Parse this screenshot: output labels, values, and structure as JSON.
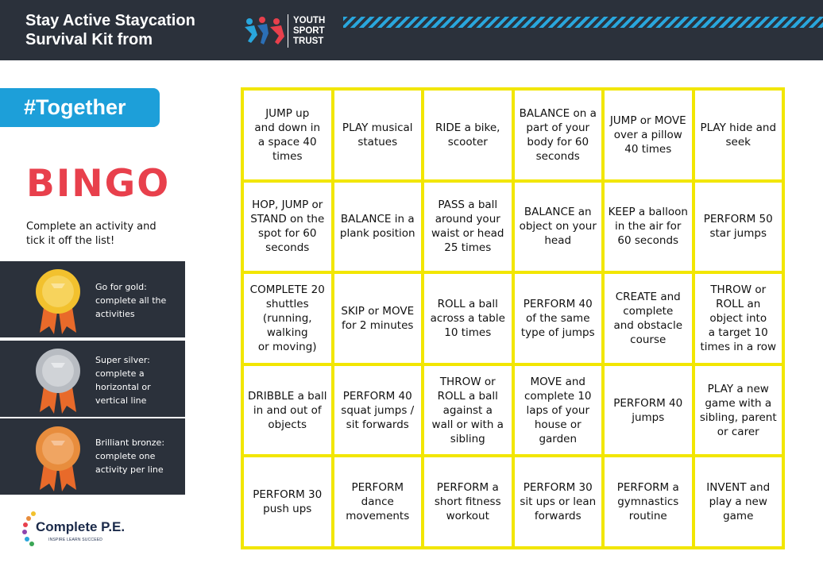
{
  "header": {
    "title": "Stay Active Staycation Survival Kit from",
    "logo_text": "YOUTH SPORT TRUST"
  },
  "tag": "#Together",
  "bingo_title": "BINGO",
  "instruction": "Complete an activity and tick it off the list!",
  "medals": [
    {
      "name": "gold",
      "text": "Go for gold: complete all the activities",
      "color": "#f2c12e"
    },
    {
      "name": "silver",
      "text": "Super silver: complete a horizontal or vertical line",
      "color": "#b8bcc2"
    },
    {
      "name": "bronze",
      "text": "Brilliant bronze: complete one activity per line",
      "color": "#e88d3d"
    }
  ],
  "footer_logo": {
    "name": "Complete P.E.",
    "tagline": "INSPIRE LEARN SUCCEED"
  },
  "grid": [
    [
      "JUMP up\nand down in\na space 40\ntimes",
      "PLAY musical\nstatues",
      "RIDE a bike,\nscooter",
      "BALANCE on a\npart of your\nbody for 60\nseconds",
      "JUMP or MOVE\nover a pillow\n40 times",
      "PLAY hide and\nseek"
    ],
    [
      "HOP, JUMP or\nSTAND on the\nspot for 60\nseconds",
      "BALANCE in a\nplank position",
      "PASS a ball\naround your\nwaist or head\n25 times",
      "BALANCE an\nobject on your\nhead",
      "KEEP a balloon\nin the air for\n60 seconds",
      "PERFORM 50\nstar jumps"
    ],
    [
      "COMPLETE 20\nshuttles\n(running, walking\nor moving)",
      "SKIP or MOVE\nfor 2 minutes",
      "ROLL a ball\nacross a table\n10 times",
      "PERFORM 40\nof the same\ntype of jumps",
      "CREATE and\ncomplete\nand obstacle\ncourse",
      "THROW or\nROLL an\nobject into\na target 10\ntimes in a row"
    ],
    [
      "DRIBBLE a ball\nin and out of\nobjects",
      "PERFORM 40\nsquat jumps /\nsit forwards",
      "THROW or\nROLL a ball\nagainst a\nwall or with a\nsibling",
      "MOVE and\ncomplete 10\nlaps of your\nhouse or\ngarden",
      "PERFORM 40\njumps",
      "PLAY a new\ngame with a\nsibling, parent\nor carer"
    ],
    [
      "PERFORM 30\npush ups",
      "PERFORM\ndance\nmovements",
      "PERFORM a\nshort fitness\nworkout",
      "PERFORM 30\nsit ups or lean\nforwards",
      "PERFORM a\ngymnastics\nroutine",
      "INVENT and\nplay a new\ngame"
    ]
  ]
}
